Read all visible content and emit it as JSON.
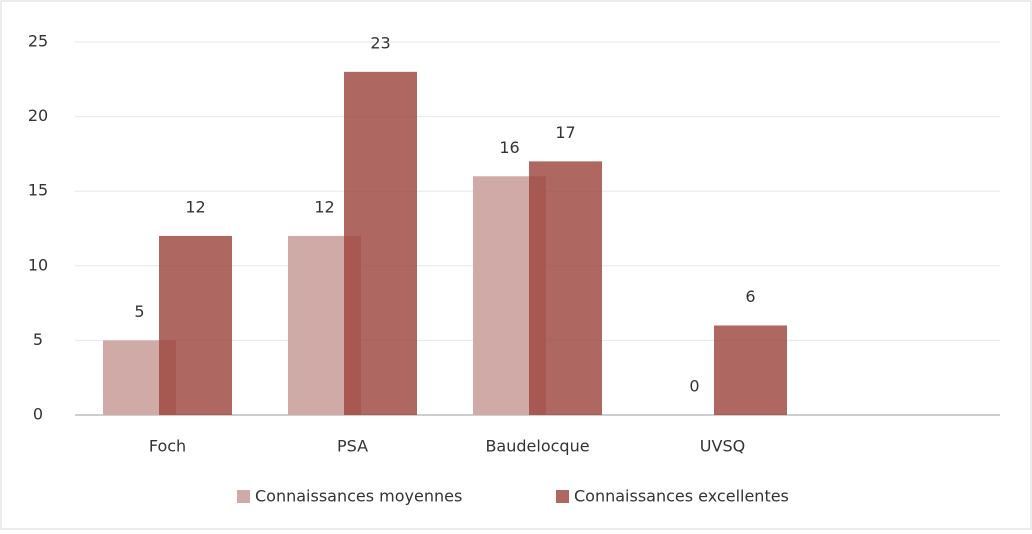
{
  "chart_data": {
    "type": "bar",
    "categories": [
      "Foch",
      "PSA",
      "Baudelocque",
      "UVSQ",
      null
    ],
    "series": [
      {
        "name": "Connaissances moyennes",
        "color": "#cfaaa6",
        "values": [
          5,
          12,
          16,
          0,
          null
        ]
      },
      {
        "name": "Connaissances excellentes",
        "color": "#9c463e",
        "values": [
          12,
          23,
          17,
          6,
          null
        ]
      }
    ],
    "ylim": [
      0,
      25
    ],
    "yticks": [
      0,
      5,
      10,
      15,
      20,
      25
    ],
    "grid": true,
    "legend": "bottom"
  }
}
